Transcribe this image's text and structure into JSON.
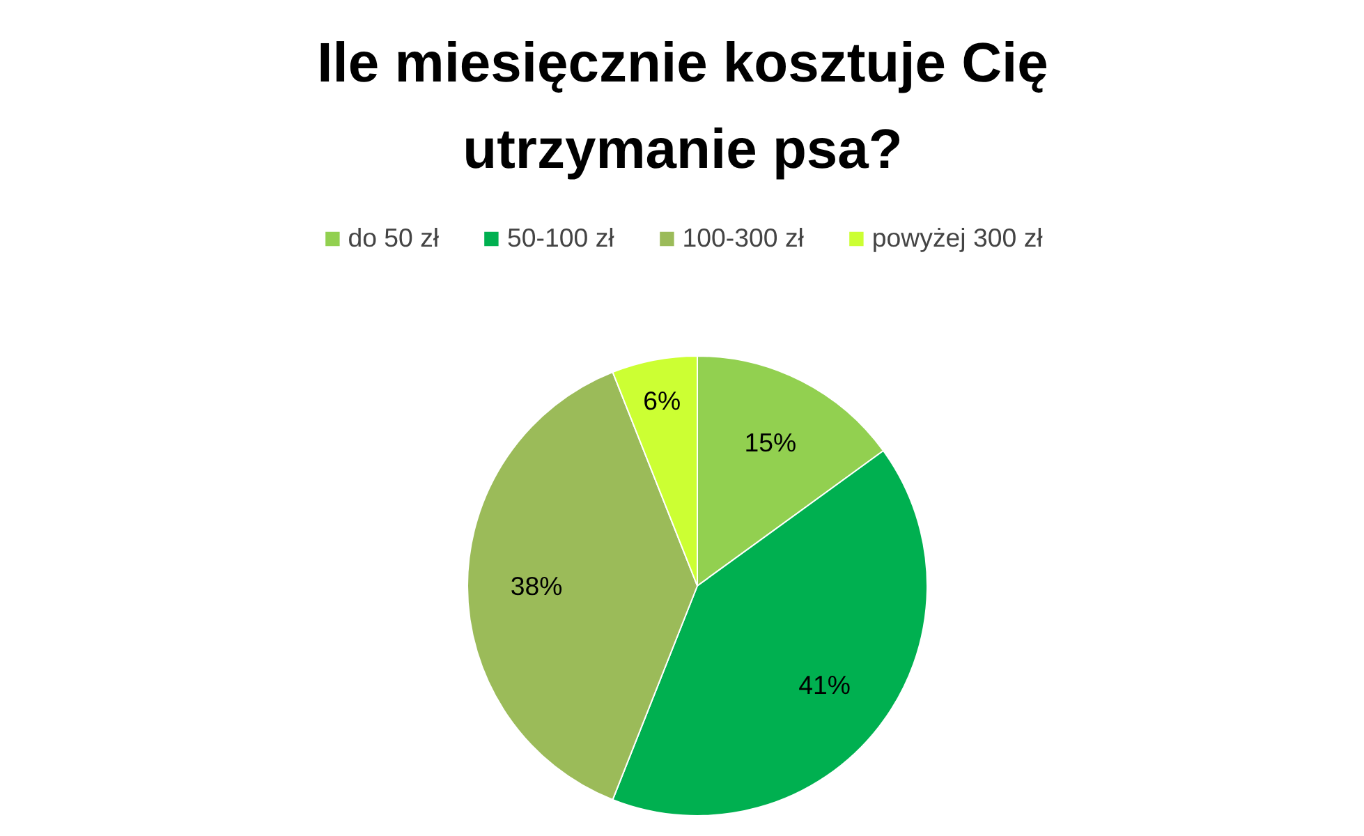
{
  "chart_data": {
    "type": "pie",
    "title": "Ile miesięcznie kosztuje Cię utrzymanie psa?",
    "categories": [
      "do 50 zł",
      "50-100 zł",
      "100-300 zł",
      "powyżej 300 zł"
    ],
    "values": [
      15,
      41,
      38,
      6
    ],
    "colors": [
      "#92d050",
      "#00b050",
      "#9bbb59",
      "#ccff33"
    ],
    "value_labels": [
      "15%",
      "41%",
      "38%",
      "6%"
    ],
    "legend": "top"
  }
}
